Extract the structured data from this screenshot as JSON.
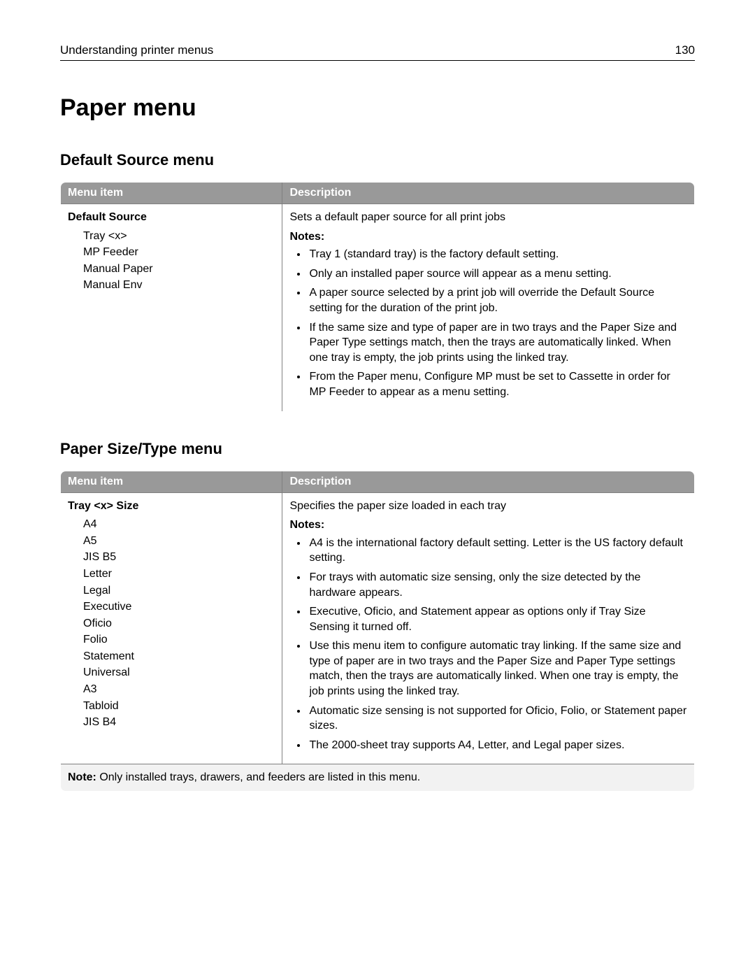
{
  "header": {
    "section_title": "Understanding printer menus",
    "page_number": "130"
  },
  "h1": "Paper menu",
  "section1": {
    "heading": "Default Source menu",
    "columns": {
      "menu_item": "Menu item",
      "description": "Description"
    },
    "item_title": "Default Source",
    "item_options": [
      "Tray <x>",
      "MP Feeder",
      "Manual Paper",
      "Manual Env"
    ],
    "desc_lead": "Sets a default paper source for all print jobs",
    "notes_label": "Notes:",
    "notes": [
      "Tray 1 (standard tray) is the factory default setting.",
      "Only an installed paper source will appear as a menu setting.",
      "A paper source selected by a print job will override the Default Source setting for the duration of the print job.",
      "If the same size and type of paper are in two trays and the Paper Size and Paper Type settings match, then the trays are automatically linked. When one tray is empty, the job prints using the linked tray.",
      "From the Paper menu, Configure MP must be set to Cassette in order for MP Feeder to appear as a menu setting."
    ]
  },
  "section2": {
    "heading": "Paper Size/Type menu",
    "columns": {
      "menu_item": "Menu item",
      "description": "Description"
    },
    "item_title": "Tray <x> Size",
    "item_options": [
      "A4",
      "A5",
      "JIS B5",
      "Letter",
      "Legal",
      "Executive",
      "Oficio",
      "Folio",
      "Statement",
      "Universal",
      "A3",
      "Tabloid",
      "JIS B4"
    ],
    "desc_lead": "Specifies the paper size loaded in each tray",
    "notes_label": "Notes:",
    "notes": [
      "A4 is the international factory default setting. Letter is the US factory default setting.",
      "For trays with automatic size sensing, only the size detected by the hardware appears.",
      "Executive, Oficio, and Statement appear as options only if Tray Size Sensing it turned off.",
      "Use this menu item to configure automatic tray linking. If the same size and type of paper are in two trays and the Paper Size and Paper Type settings match, then the trays are automatically linked. When one tray is empty, the job prints using the linked tray.",
      "Automatic size sensing is not supported for Oficio, Folio, or Statement paper sizes.",
      "The 2000‑sheet tray supports A4, Letter, and Legal paper sizes."
    ],
    "footnote_label": "Note:",
    "footnote_text": " Only installed trays, drawers, and feeders are listed in this menu."
  },
  "colors": {
    "header_bg": "#999999",
    "header_fg": "#ffffff",
    "border": "#808080",
    "footnote_bg": "#f2f2f2",
    "text": "#000000",
    "page_bg": "#ffffff"
  }
}
